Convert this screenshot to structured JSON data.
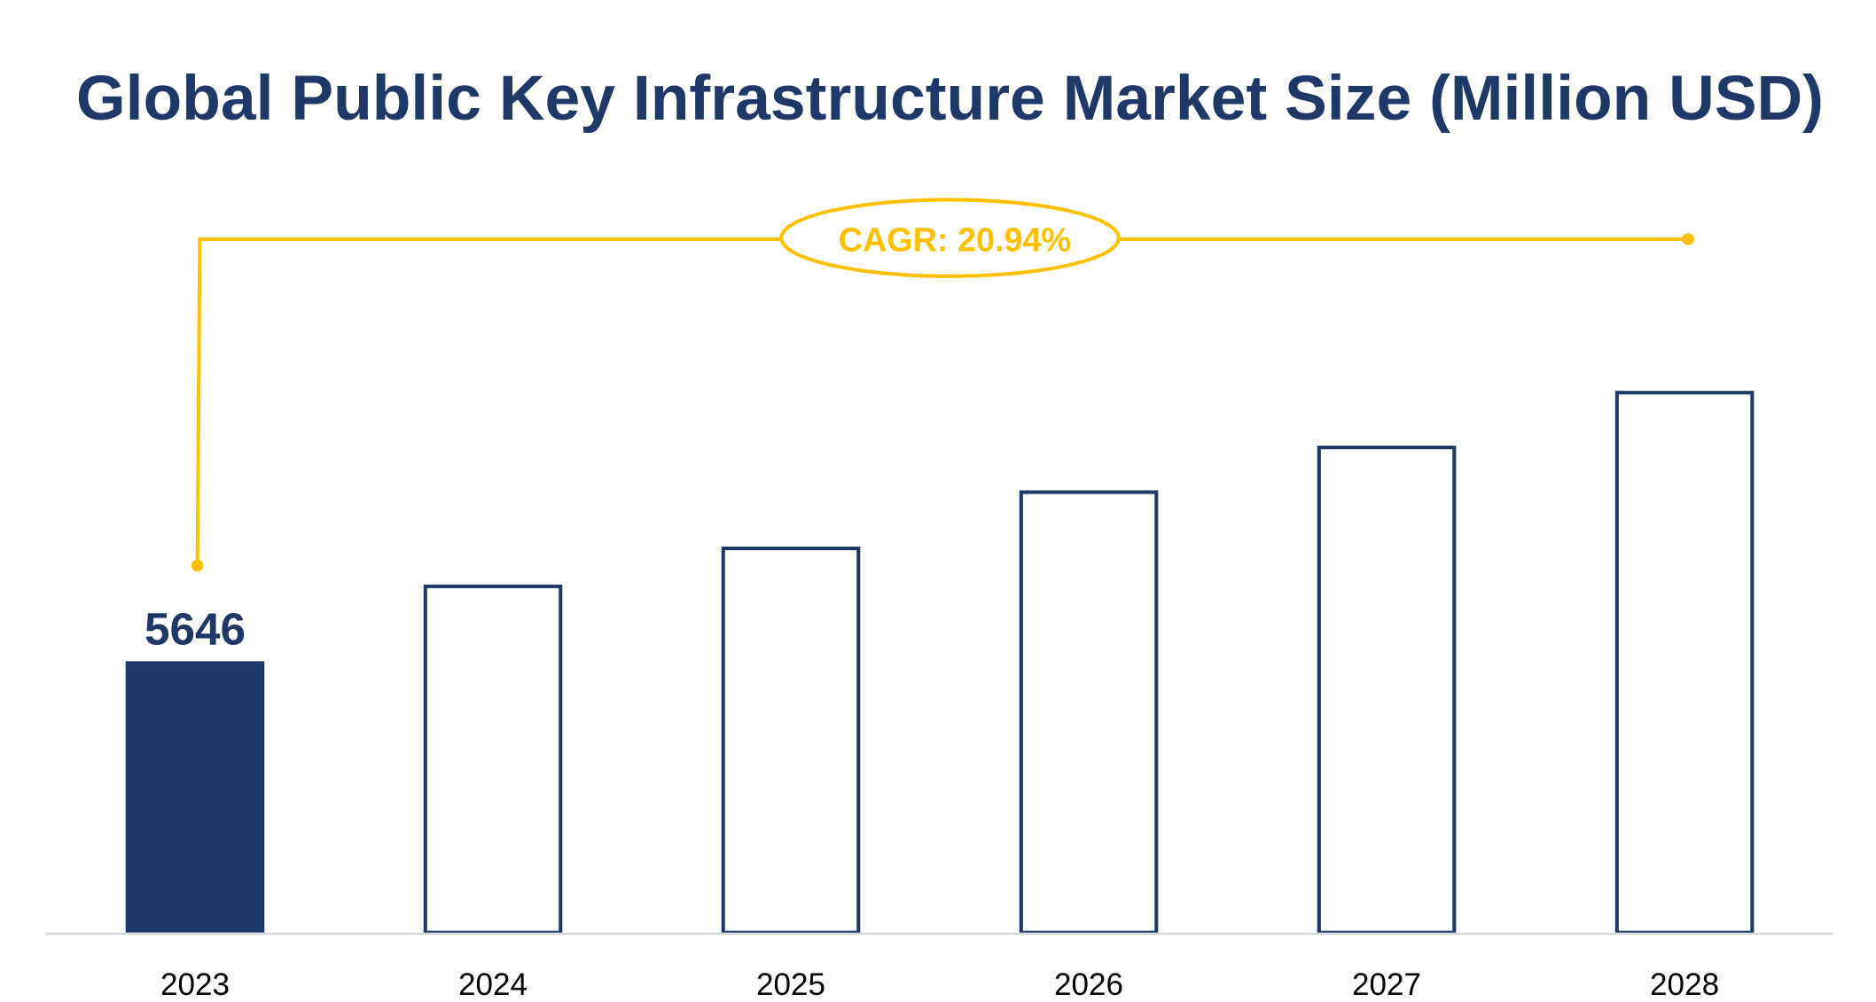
{
  "chart_data": {
    "type": "bar",
    "title": "Global Public Key Infrastructure Market Size (Million USD)",
    "categories": [
      "2023",
      "2024",
      "2025",
      "2026",
      "2027",
      "2028"
    ],
    "values": [
      5646,
      7240,
      8030,
      9200,
      10130,
      11270
    ],
    "data_labels": [
      "5646",
      "",
      "",
      "",
      "",
      ""
    ],
    "highlighted_index": 0,
    "xlabel": "",
    "ylabel": "",
    "ylim": [
      0,
      15000
    ],
    "grid": false,
    "annotation": "CAGR: 20.94%",
    "colors": {
      "title": "#1F3868",
      "bar": "#1F3868",
      "annotation": "#FFC000",
      "axis": "#D9D9D9",
      "tick_label": "#000000"
    }
  }
}
